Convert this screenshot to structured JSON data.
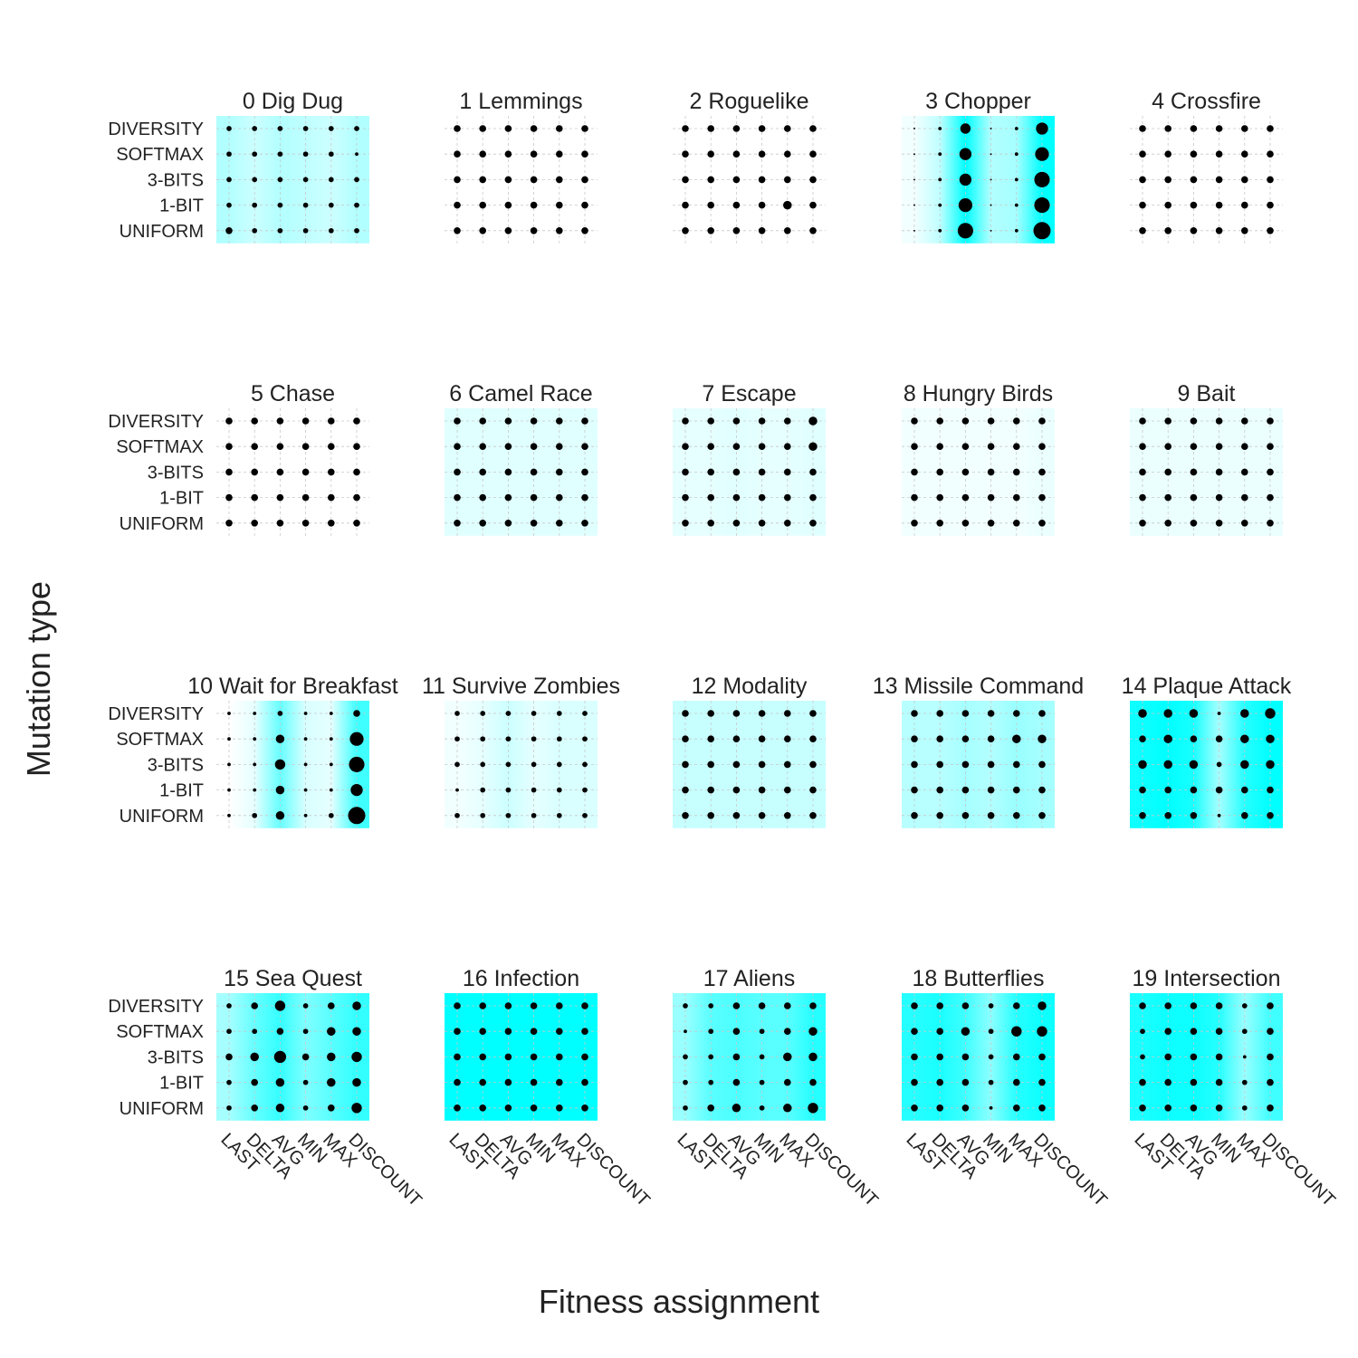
{
  "chart_data": {
    "type": "heatmap",
    "title": "",
    "xlabel": "Fitness assignment",
    "ylabel": "Mutation type",
    "x_categories": [
      "LAST",
      "DELTA",
      "AVG",
      "MIN",
      "MAX",
      "DISCOUNT"
    ],
    "y_categories": [
      "DIVERSITY",
      "SOFTMAX",
      "3-BITS",
      "1-BIT",
      "UNIFORM"
    ],
    "encoding": "dot size = value within panel; cyan background = intensity",
    "accent_color": "#00ffff",
    "dot_color": "#000000",
    "panels": [
      {
        "title": "0 Dig Dug",
        "columns": [
          0.3,
          0.2,
          0.3,
          0.25,
          0.2,
          0.3
        ],
        "values": [
          [
            3,
            3,
            3,
            3,
            3,
            3
          ],
          [
            3,
            3,
            3,
            3,
            3,
            2
          ],
          [
            3,
            3,
            3,
            3,
            3,
            3
          ],
          [
            3,
            3,
            3,
            3,
            3,
            3
          ],
          [
            4,
            3,
            3,
            3,
            3,
            3
          ]
        ]
      },
      {
        "title": "1 Lemmings",
        "columns": [
          0,
          0,
          0,
          0,
          0,
          0
        ],
        "values": [
          [
            4,
            4,
            4,
            4,
            4,
            4
          ],
          [
            4,
            4,
            4,
            4,
            4,
            4
          ],
          [
            4,
            4,
            4,
            4,
            4,
            4
          ],
          [
            4,
            4,
            4,
            4,
            4,
            4
          ],
          [
            4,
            4,
            4,
            4,
            4,
            4
          ]
        ]
      },
      {
        "title": "2 Roguelike",
        "columns": [
          0,
          0,
          0,
          0,
          0,
          0
        ],
        "values": [
          [
            4,
            4,
            4,
            4,
            4,
            4
          ],
          [
            4,
            4,
            4,
            4,
            4,
            4
          ],
          [
            4,
            4,
            4,
            4,
            4,
            4
          ],
          [
            4,
            4,
            4,
            4,
            5,
            4
          ],
          [
            4,
            4,
            4,
            4,
            4,
            4
          ]
        ]
      },
      {
        "title": "3 Chopper",
        "columns": [
          0.05,
          0.25,
          1.0,
          0.3,
          0.35,
          1.0
        ],
        "values": [
          [
            1,
            2,
            6,
            1,
            2,
            7
          ],
          [
            1,
            2,
            7,
            1,
            2,
            8
          ],
          [
            1,
            2,
            7,
            1,
            2,
            9
          ],
          [
            1,
            2,
            8,
            1,
            2,
            9
          ],
          [
            1,
            2,
            9,
            1,
            2,
            10
          ]
        ]
      },
      {
        "title": "4 Crossfire",
        "columns": [
          0,
          0,
          0,
          0,
          0,
          0
        ],
        "values": [
          [
            4,
            4,
            4,
            4,
            4,
            4
          ],
          [
            4,
            4,
            4,
            4,
            4,
            4
          ],
          [
            4,
            4,
            4,
            4,
            4,
            4
          ],
          [
            4,
            4,
            4,
            4,
            4,
            4
          ],
          [
            4,
            4,
            4,
            4,
            4,
            4
          ]
        ]
      },
      {
        "title": "5 Chase",
        "columns": [
          0,
          0,
          0,
          0,
          0,
          0
        ],
        "values": [
          [
            4,
            4,
            4,
            4,
            4,
            4
          ],
          [
            4,
            4,
            4,
            4,
            4,
            4
          ],
          [
            4,
            4,
            4,
            4,
            4,
            4
          ],
          [
            4,
            4,
            4,
            4,
            4,
            4
          ],
          [
            4,
            4,
            4,
            4,
            4,
            4
          ]
        ]
      },
      {
        "title": "6 Camel Race",
        "columns": [
          0.12,
          0.12,
          0.12,
          0.12,
          0.12,
          0.12
        ],
        "values": [
          [
            4,
            4,
            4,
            4,
            4,
            4
          ],
          [
            4,
            4,
            4,
            4,
            4,
            4
          ],
          [
            4,
            4,
            4,
            4,
            4,
            4
          ],
          [
            4,
            4,
            4,
            4,
            4,
            4
          ],
          [
            4,
            4,
            4,
            4,
            4,
            4
          ]
        ]
      },
      {
        "title": "7 Escape",
        "columns": [
          0.1,
          0.1,
          0.12,
          0.1,
          0.1,
          0.12
        ],
        "values": [
          [
            4,
            4,
            4,
            4,
            4,
            5
          ],
          [
            4,
            4,
            4,
            4,
            4,
            5
          ],
          [
            4,
            4,
            4,
            4,
            4,
            4
          ],
          [
            4,
            4,
            4,
            4,
            4,
            4
          ],
          [
            4,
            4,
            4,
            4,
            4,
            4
          ]
        ]
      },
      {
        "title": "8 Hungry Birds",
        "columns": [
          0.05,
          0.05,
          0.05,
          0.05,
          0.05,
          0.08
        ],
        "values": [
          [
            4,
            4,
            4,
            4,
            4,
            4
          ],
          [
            4,
            4,
            4,
            4,
            4,
            4
          ],
          [
            4,
            4,
            4,
            4,
            4,
            4
          ],
          [
            4,
            4,
            4,
            4,
            4,
            4
          ],
          [
            4,
            4,
            4,
            4,
            4,
            4
          ]
        ]
      },
      {
        "title": "9 Bait",
        "columns": [
          0.08,
          0.08,
          0.08,
          0.08,
          0.08,
          0.08
        ],
        "values": [
          [
            4,
            4,
            4,
            4,
            4,
            4
          ],
          [
            4,
            4,
            4,
            4,
            4,
            4
          ],
          [
            4,
            4,
            4,
            4,
            4,
            4
          ],
          [
            4,
            4,
            4,
            4,
            4,
            4
          ],
          [
            4,
            4,
            4,
            4,
            4,
            4
          ]
        ]
      },
      {
        "title": "10 Wait for Breakfast",
        "columns": [
          0.0,
          0.1,
          0.6,
          0.15,
          0.1,
          0.75
        ],
        "values": [
          [
            2,
            2,
            3,
            2,
            2,
            4
          ],
          [
            2,
            2,
            5,
            2,
            2,
            8
          ],
          [
            2,
            2,
            6,
            2,
            2,
            9
          ],
          [
            2,
            2,
            5,
            2,
            2,
            7
          ],
          [
            2,
            3,
            5,
            2,
            3,
            10
          ]
        ]
      },
      {
        "title": "11 Survive Zombies",
        "columns": [
          0.05,
          0.1,
          0.2,
          0.1,
          0.15,
          0.15
        ],
        "values": [
          [
            3,
            3,
            3,
            3,
            3,
            3
          ],
          [
            3,
            3,
            3,
            3,
            3,
            3
          ],
          [
            3,
            3,
            3,
            3,
            3,
            3
          ],
          [
            2,
            3,
            3,
            3,
            3,
            3
          ],
          [
            3,
            3,
            3,
            3,
            3,
            3
          ]
        ]
      },
      {
        "title": "12 Modality",
        "columns": [
          0.22,
          0.22,
          0.22,
          0.22,
          0.22,
          0.22
        ],
        "values": [
          [
            4,
            4,
            4,
            4,
            4,
            4
          ],
          [
            4,
            4,
            4,
            4,
            4,
            4
          ],
          [
            4,
            4,
            4,
            4,
            4,
            4
          ],
          [
            4,
            4,
            4,
            4,
            4,
            4
          ],
          [
            4,
            4,
            4,
            4,
            4,
            4
          ]
        ]
      },
      {
        "title": "13 Missile Command",
        "columns": [
          0.28,
          0.28,
          0.35,
          0.3,
          0.4,
          0.35
        ],
        "values": [
          [
            4,
            4,
            4,
            4,
            4,
            4
          ],
          [
            4,
            4,
            4,
            4,
            5,
            5
          ],
          [
            4,
            4,
            4,
            4,
            4,
            4
          ],
          [
            4,
            4,
            4,
            4,
            4,
            4
          ],
          [
            4,
            4,
            4,
            4,
            4,
            4
          ]
        ]
      },
      {
        "title": "14 Plaque Attack",
        "columns": [
          0.95,
          1.0,
          0.9,
          0.35,
          0.85,
          1.0
        ],
        "values": [
          [
            5,
            5,
            5,
            2,
            5,
            6
          ],
          [
            4,
            5,
            4,
            4,
            5,
            5
          ],
          [
            5,
            5,
            5,
            3,
            5,
            5
          ],
          [
            4,
            4,
            4,
            4,
            4,
            4
          ],
          [
            4,
            4,
            4,
            2,
            4,
            4
          ]
        ]
      },
      {
        "title": "15 Sea Quest",
        "columns": [
          0.35,
          0.6,
          0.8,
          0.5,
          0.65,
          0.8
        ],
        "values": [
          [
            3,
            4,
            6,
            3,
            4,
            5
          ],
          [
            3,
            3,
            4,
            3,
            5,
            5
          ],
          [
            4,
            5,
            7,
            4,
            5,
            6
          ],
          [
            3,
            4,
            5,
            3,
            5,
            5
          ],
          [
            3,
            4,
            5,
            3,
            4,
            6
          ]
        ]
      },
      {
        "title": "16 Infection",
        "columns": [
          1.0,
          1.0,
          1.0,
          1.0,
          1.0,
          1.0
        ],
        "values": [
          [
            4,
            4,
            4,
            4,
            4,
            4
          ],
          [
            4,
            4,
            4,
            4,
            4,
            4
          ],
          [
            4,
            4,
            4,
            4,
            4,
            4
          ],
          [
            4,
            4,
            4,
            4,
            4,
            4
          ],
          [
            4,
            4,
            4,
            4,
            4,
            4
          ]
        ]
      },
      {
        "title": "17 Aliens",
        "columns": [
          0.4,
          0.65,
          0.7,
          0.65,
          0.65,
          0.85
        ],
        "values": [
          [
            3,
            3,
            4,
            4,
            4,
            4
          ],
          [
            2,
            3,
            4,
            3,
            4,
            5
          ],
          [
            3,
            3,
            4,
            3,
            5,
            5
          ],
          [
            3,
            3,
            4,
            3,
            4,
            4
          ],
          [
            3,
            4,
            5,
            3,
            5,
            6
          ]
        ]
      },
      {
        "title": "18 Butterflies",
        "columns": [
          0.85,
          0.9,
          0.75,
          0.45,
          0.85,
          0.95
        ],
        "values": [
          [
            4,
            4,
            4,
            3,
            4,
            5
          ],
          [
            4,
            4,
            5,
            3,
            6,
            6
          ],
          [
            4,
            4,
            4,
            3,
            4,
            4
          ],
          [
            4,
            4,
            4,
            3,
            4,
            4
          ],
          [
            4,
            4,
            4,
            2,
            4,
            4
          ]
        ]
      },
      {
        "title": "19 Intersection",
        "columns": [
          0.9,
          0.95,
          0.95,
          0.85,
          0.4,
          0.75
        ],
        "values": [
          [
            4,
            4,
            4,
            4,
            3,
            4
          ],
          [
            3,
            4,
            4,
            4,
            3,
            4
          ],
          [
            3,
            4,
            4,
            4,
            2,
            4
          ],
          [
            4,
            4,
            4,
            4,
            3,
            4
          ],
          [
            4,
            4,
            4,
            4,
            3,
            4
          ]
        ]
      }
    ]
  }
}
